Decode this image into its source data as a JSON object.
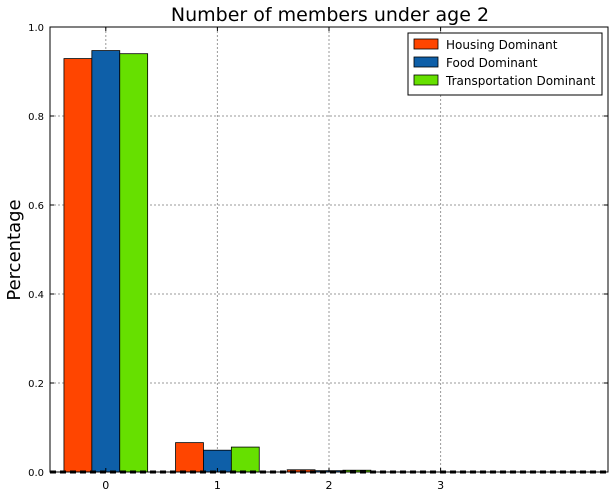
{
  "chart_data": {
    "type": "bar",
    "title": "Number of members under age 2",
    "xlabel": "",
    "ylabel": "Percentage",
    "categories": [
      "0",
      "1",
      "2",
      "3"
    ],
    "x_ticks": [
      "0",
      "1",
      "2",
      "3"
    ],
    "y_ticks": [
      "0.0",
      "0.2",
      "0.4",
      "0.6",
      "0.8",
      "1.0"
    ],
    "ylim": [
      0,
      1.0
    ],
    "xlim": [
      -0.5,
      4.5
    ],
    "grid": true,
    "legend_position": "top-right",
    "series": [
      {
        "name": "Housing Dominant",
        "color": "#ff4500",
        "values": [
          0.929,
          0.066,
          0.005,
          0.0
        ]
      },
      {
        "name": "Food Dominant",
        "color": "#0e5fa8",
        "values": [
          0.947,
          0.049,
          0.003,
          0.0
        ]
      },
      {
        "name": "Transportation Dominant",
        "color": "#66e000",
        "values": [
          0.94,
          0.056,
          0.004,
          0.0
        ]
      }
    ]
  }
}
